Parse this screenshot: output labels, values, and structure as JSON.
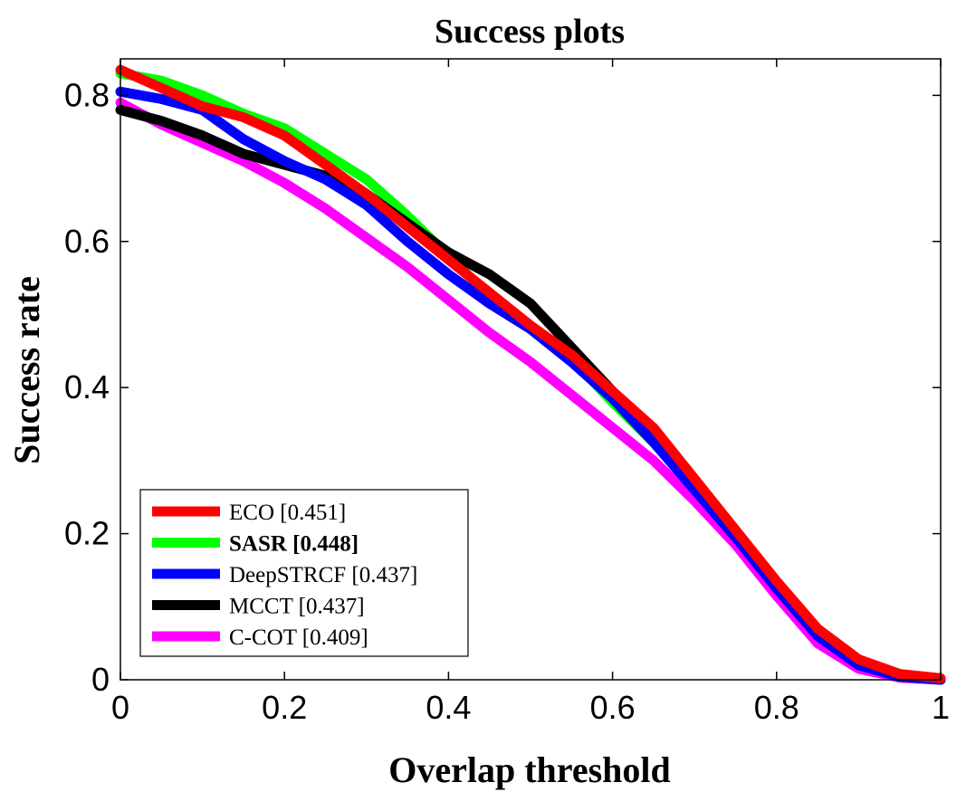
{
  "chart_data": {
    "type": "line",
    "title": "Success plots",
    "xlabel": "Overlap threshold",
    "ylabel": "Success rate",
    "xlim": [
      0,
      1
    ],
    "ylim": [
      0,
      0.85
    ],
    "xticks": [
      0,
      0.2,
      0.4,
      0.6,
      0.8,
      1
    ],
    "xtick_labels": [
      "0",
      "0.2",
      "0.4",
      "0.6",
      "0.8",
      "1"
    ],
    "yticks": [
      0,
      0.2,
      0.4,
      0.6,
      0.8
    ],
    "ytick_labels": [
      "0",
      "0.2",
      "0.4",
      "0.6",
      "0.8"
    ],
    "legend_position": "bottom-left",
    "x": [
      0,
      0.05,
      0.1,
      0.15,
      0.2,
      0.25,
      0.3,
      0.35,
      0.4,
      0.45,
      0.5,
      0.55,
      0.6,
      0.65,
      0.7,
      0.75,
      0.8,
      0.85,
      0.9,
      0.95,
      1.0
    ],
    "series": [
      {
        "name": "SASR",
        "legend_label": "SASR [0.448]",
        "bold": true,
        "color": "#00ff00",
        "values": [
          0.83,
          0.82,
          0.8,
          0.775,
          0.755,
          0.72,
          0.685,
          0.635,
          0.58,
          0.525,
          0.48,
          0.44,
          0.38,
          0.325,
          0.265,
          0.2,
          0.13,
          0.065,
          0.025,
          0.005,
          0.0
        ]
      },
      {
        "name": "C-COT",
        "legend_label": "C-COT [0.409]",
        "bold": false,
        "color": "#ff00ff",
        "values": [
          0.79,
          0.76,
          0.735,
          0.71,
          0.68,
          0.645,
          0.605,
          0.565,
          0.52,
          0.475,
          0.435,
          0.39,
          0.345,
          0.3,
          0.245,
          0.185,
          0.115,
          0.05,
          0.015,
          0.003,
          0.0
        ]
      },
      {
        "name": "MCCT",
        "legend_label": "MCCT [0.437]",
        "bold": false,
        "color": "#000000",
        "values": [
          0.78,
          0.765,
          0.745,
          0.72,
          0.705,
          0.69,
          0.665,
          0.625,
          0.585,
          0.555,
          0.515,
          0.455,
          0.395,
          0.33,
          0.265,
          0.2,
          0.13,
          0.065,
          0.025,
          0.005,
          0.0
        ]
      },
      {
        "name": "DeepSTRCF",
        "legend_label": "DeepSTRCF [0.437]",
        "bold": false,
        "color": "#0000ff",
        "values": [
          0.805,
          0.795,
          0.78,
          0.74,
          0.71,
          0.685,
          0.65,
          0.6,
          0.555,
          0.515,
          0.48,
          0.435,
          0.385,
          0.325,
          0.26,
          0.195,
          0.125,
          0.06,
          0.02,
          0.004,
          0.0
        ]
      },
      {
        "name": "ECO",
        "legend_label": "ECO [0.451]",
        "bold": false,
        "color": "#ff0000",
        "values": [
          0.835,
          0.81,
          0.785,
          0.77,
          0.745,
          0.705,
          0.665,
          0.62,
          0.575,
          0.53,
          0.485,
          0.445,
          0.395,
          0.345,
          0.275,
          0.205,
          0.135,
          0.07,
          0.028,
          0.008,
          0.002
        ]
      }
    ],
    "legend_order": [
      "ECO",
      "SASR",
      "DeepSTRCF",
      "MCCT",
      "C-COT"
    ]
  }
}
